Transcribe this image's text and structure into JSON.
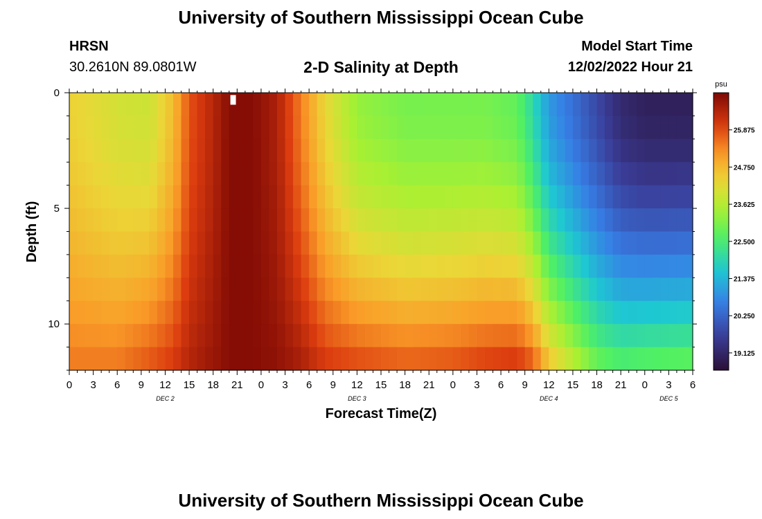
{
  "header": {
    "title": "University of Southern Mississippi Ocean Cube",
    "station": "HRSN",
    "coords": "30.2610N  89.0801W",
    "subtitle": "2-D Salinity at Depth",
    "start_label": "Model Start Time",
    "start_value": "12/02/2022 Hour 21"
  },
  "footer": {
    "title": "University of Southern Mississippi Ocean Cube"
  },
  "chart_data": {
    "type": "heatmap",
    "title": "2-D Salinity at Depth",
    "xlabel": "Forecast Time(Z)",
    "ylabel": "Depth (ft)",
    "x_tick_labels": [
      "0",
      "3",
      "6",
      "9",
      "12",
      "15",
      "18",
      "21",
      "0",
      "3",
      "6",
      "9",
      "12",
      "15",
      "18",
      "21",
      "0",
      "3",
      "6",
      "9",
      "12",
      "15",
      "18",
      "21",
      "0",
      "3",
      "6"
    ],
    "day_labels": [
      {
        "label": "DEC 2",
        "hour": 12
      },
      {
        "label": "DEC 3",
        "hour": 36
      },
      {
        "label": "DEC 4",
        "hour": 60
      },
      {
        "label": "DEC 5",
        "hour": 75
      }
    ],
    "xlim_hours": [
      0,
      78
    ],
    "y_ticks": [
      0,
      5,
      10
    ],
    "ylim_ft": [
      0,
      12
    ],
    "colorbar": {
      "unit": "psu",
      "ticks": [
        25.875,
        24.75,
        23.625,
        22.5,
        21.375,
        20.25,
        19.125
      ],
      "tick_labels": [
        "25.875",
        "24.750",
        "23.625",
        "22.500",
        "21.375",
        "20.250",
        "19.125"
      ],
      "range": [
        18.6,
        27.0
      ]
    },
    "depth_levels_ft": [
      0.5,
      1.5,
      2.5,
      3.5,
      4.5,
      5.5,
      6.5,
      7.5,
      8.5,
      9.5,
      10.5,
      11.5
    ],
    "time_anchors_hours": [
      0,
      6,
      10,
      13,
      15,
      18,
      20,
      23,
      26,
      29,
      32,
      36,
      42,
      48,
      52,
      56,
      58,
      60,
      63,
      66,
      69,
      72,
      78
    ],
    "surface_salinity": [
      24.4,
      24.0,
      23.9,
      24.7,
      25.8,
      26.4,
      26.9,
      26.9,
      26.5,
      25.4,
      24.3,
      23.3,
      23.0,
      23.0,
      23.0,
      22.8,
      22.0,
      21.0,
      20.4,
      19.8,
      19.2,
      19.0,
      19.0
    ],
    "bottom_salinity": [
      25.4,
      25.4,
      25.7,
      26.0,
      26.4,
      26.7,
      26.9,
      26.9,
      26.8,
      26.5,
      26.0,
      25.8,
      25.6,
      25.7,
      25.9,
      26.0,
      25.6,
      24.5,
      23.6,
      22.8,
      22.5,
      22.6,
      22.7
    ],
    "marker": {
      "hour": 20.5,
      "depth_ft": 0.1
    }
  }
}
